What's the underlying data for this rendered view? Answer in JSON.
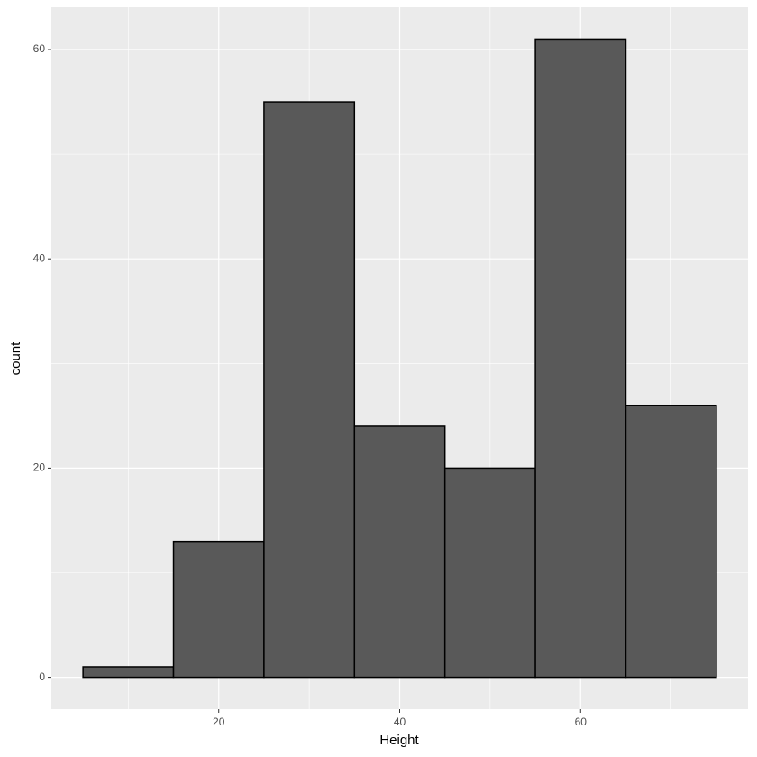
{
  "chart_data": {
    "type": "histogram",
    "x_label": "Height",
    "y_label": "count",
    "bins": [
      5,
      15,
      25,
      35,
      45,
      55,
      65,
      75
    ],
    "values": [
      1,
      13,
      55,
      24,
      20,
      61,
      26
    ],
    "color": "#595959",
    "edge_color": "#000000",
    "xlim": [
      1.5,
      78.5
    ],
    "xticks": [
      20,
      40,
      60
    ],
    "ylim": [
      -3.05,
      64.05
    ],
    "yticks": [
      0,
      20,
      40,
      60
    ],
    "grid": true
  }
}
